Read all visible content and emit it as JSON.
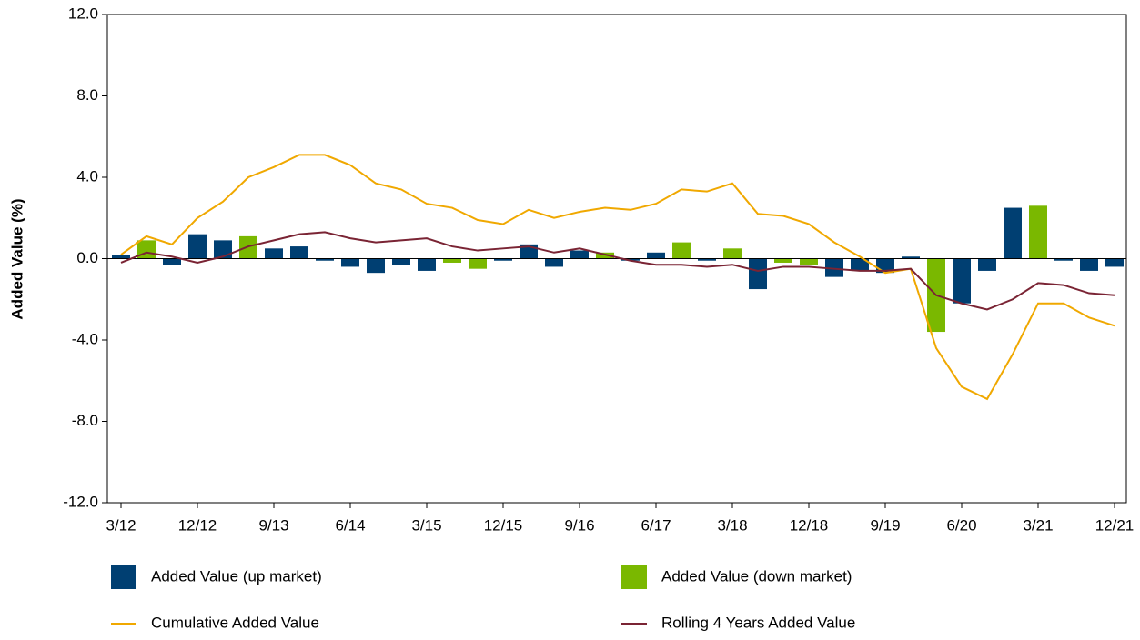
{
  "chart_data": {
    "type": "bar_line",
    "ylabel": "Added Value (%)",
    "categories": [
      "3/12",
      null,
      null,
      "12/12",
      null,
      null,
      "9/13",
      null,
      null,
      "6/14",
      null,
      null,
      "3/15",
      null,
      null,
      "12/15",
      null,
      null,
      "9/16",
      null,
      null,
      "6/17",
      null,
      null,
      "3/18",
      null,
      null,
      "12/18",
      null,
      null,
      "9/19",
      null,
      null,
      "6/20",
      null,
      null,
      "3/21",
      null,
      null,
      "12/21"
    ],
    "series": [
      {
        "name": "Added Value (up market)",
        "kind": "bar",
        "color": "#003f72",
        "values": [
          0.2,
          null,
          -0.3,
          1.2,
          0.9,
          null,
          0.5,
          0.6,
          -0.1,
          -0.4,
          -0.7,
          -0.3,
          -0.6,
          null,
          null,
          -0.1,
          0.7,
          -0.4,
          0.4,
          null,
          -0.1,
          0.3,
          null,
          -0.1,
          null,
          -1.5,
          null,
          null,
          -0.9,
          -0.6,
          -0.7,
          0.1,
          null,
          -2.2,
          -0.6,
          2.5,
          null,
          -0.1,
          -0.6,
          -0.4
        ]
      },
      {
        "name": "Added Value (down market)",
        "kind": "bar",
        "color": "#7ab800",
        "values": [
          null,
          0.9,
          null,
          null,
          null,
          1.1,
          null,
          null,
          null,
          null,
          null,
          null,
          null,
          -0.2,
          -0.5,
          null,
          null,
          null,
          null,
          0.3,
          null,
          null,
          0.8,
          null,
          0.5,
          null,
          -0.2,
          -0.3,
          null,
          null,
          null,
          null,
          -3.6,
          null,
          null,
          null,
          2.6,
          null,
          null,
          null
        ]
      },
      {
        "name": "Cumulative Added Value",
        "kind": "line",
        "color": "#f0a800",
        "values": [
          0.2,
          1.1,
          0.7,
          2.0,
          2.8,
          4.0,
          4.5,
          5.1,
          5.1,
          4.6,
          3.7,
          3.4,
          2.7,
          2.5,
          1.9,
          1.7,
          2.4,
          2.0,
          2.3,
          2.5,
          2.4,
          2.7,
          3.4,
          3.3,
          3.7,
          2.2,
          2.1,
          1.7,
          0.8,
          0.1,
          -0.7,
          -0.5,
          -4.4,
          -6.3,
          -6.9,
          -4.7,
          -2.2,
          -2.2,
          -2.9,
          -3.3
        ]
      },
      {
        "name": "Rolling 4 Years Added Value",
        "kind": "line",
        "color": "#7a2434",
        "values": [
          -0.2,
          0.3,
          0.1,
          -0.2,
          0.1,
          0.6,
          0.9,
          1.2,
          1.3,
          1.0,
          0.8,
          0.9,
          1.0,
          0.6,
          0.4,
          0.5,
          0.6,
          0.3,
          0.5,
          0.2,
          -0.1,
          -0.3,
          -0.3,
          -0.4,
          -0.3,
          -0.6,
          -0.4,
          -0.4,
          -0.5,
          -0.6,
          -0.6,
          -0.5,
          -1.8,
          -2.2,
          -2.5,
          -2.0,
          -1.2,
          -1.3,
          -1.7,
          -1.8
        ]
      }
    ],
    "ylim": [
      -12,
      12
    ],
    "yticks": [
      {
        "value": -12,
        "label": "-12.0"
      },
      {
        "value": -8,
        "label": "-8.0"
      },
      {
        "value": -4,
        "label": "-4.0"
      },
      {
        "value": 0,
        "label": "0.0"
      },
      {
        "value": 4,
        "label": "4.0"
      },
      {
        "value": 8,
        "label": "8.0"
      },
      {
        "value": 12,
        "label": "12.0"
      }
    ],
    "legend": "bottom"
  }
}
